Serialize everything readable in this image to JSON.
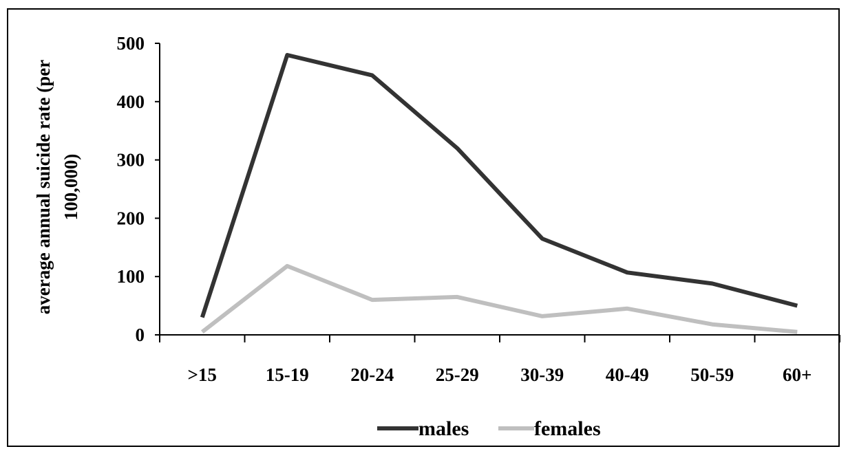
{
  "chart_data": {
    "type": "line",
    "categories": [
      ">15",
      "15-19",
      "20-24",
      "25-29",
      "30-39",
      "40-49",
      "50-59",
      "60+"
    ],
    "series": [
      {
        "name": "males",
        "color": "#333333",
        "values": [
          30,
          480,
          445,
          320,
          165,
          107,
          88,
          50
        ]
      },
      {
        "name": "females",
        "color": "#bfbfbf",
        "values": [
          5,
          118,
          60,
          65,
          32,
          45,
          18,
          5
        ]
      }
    ],
    "ylabel_lines": [
      "average annual suicide rate (per",
      "100,000)"
    ],
    "xlabel": "",
    "ylim": [
      0,
      500
    ],
    "yticks": [
      0,
      100,
      200,
      300,
      400,
      500
    ],
    "grid": false,
    "legend_position": "bottom-center"
  }
}
